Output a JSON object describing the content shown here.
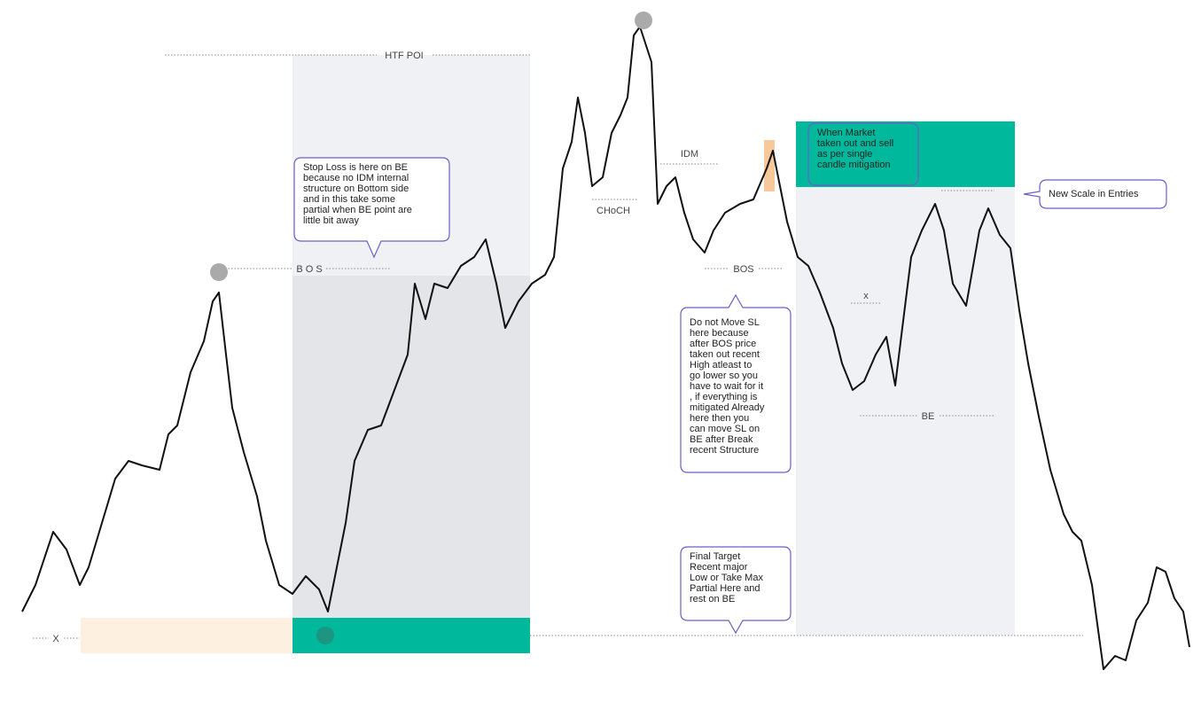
{
  "labels": {
    "htf_poi": "HTF  POI",
    "bos_left": "B O S",
    "idm": "IDM",
    "choch": "CHoCH",
    "bos_right": "BOS",
    "x_small": "x",
    "be": "BE",
    "x_left": "X"
  },
  "callouts": [
    {
      "lines": [
        "Stop Loss is here on BE",
        "because no IDM internal",
        "structure on Bottom side",
        "and in this take some",
        "partial when BE point are",
        "little bit away"
      ]
    },
    {
      "lines": [
        "When Market",
        "taken out and sell",
        "as per single",
        "candle mitigation"
      ]
    },
    {
      "lines": [
        "New Scale in Entries"
      ]
    },
    {
      "lines": [
        "Do not Move SL",
        "here because",
        "after BOS price",
        "taken out recent",
        "High atleast to",
        "go lower so you",
        "have to wait for it",
        ", if everything is",
        "mitigated Already",
        "here then you",
        "can move SL on",
        "BE after Break",
        "recent Structure"
      ]
    },
    {
      "lines": [
        "Final Target",
        "Recent major",
        "Low or Take Max",
        "Partial Here and",
        "rest on BE"
      ]
    }
  ]
}
